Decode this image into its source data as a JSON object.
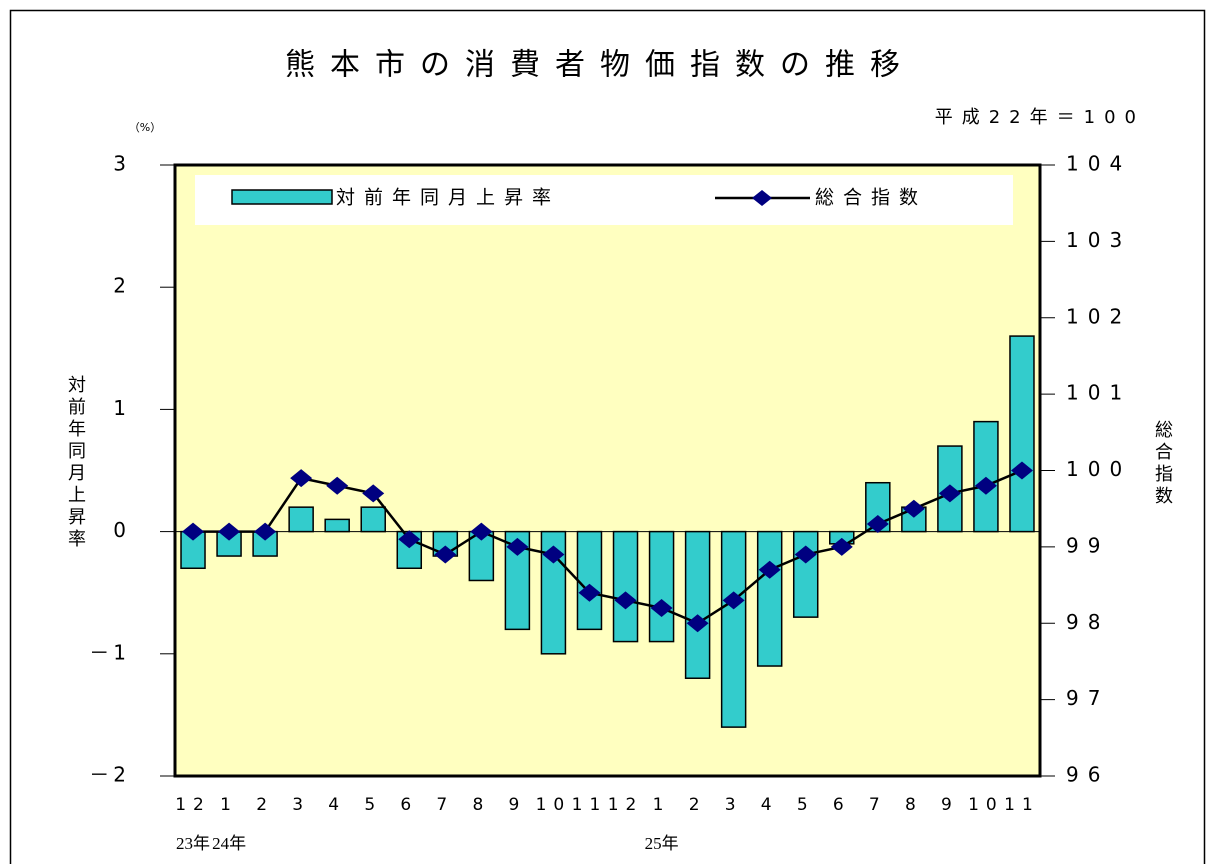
{
  "chart_data": {
    "type": "bar_line",
    "title": "熊本市の消費者物価指数の推移",
    "subtitle": "平成22年＝100",
    "y_unit": "（%）",
    "ylabel": "対前年同月上昇率",
    "y2label": "総合指数",
    "categories": [
      "12",
      "1",
      "2",
      "3",
      "4",
      "5",
      "6",
      "7",
      "8",
      "9",
      "10",
      "11",
      "12",
      "1",
      "2",
      "3",
      "4",
      "5",
      "6",
      "7",
      "8",
      "9",
      "10",
      "11"
    ],
    "category_groups": [
      "23年",
      "24年",
      null,
      null,
      null,
      null,
      null,
      null,
      null,
      null,
      null,
      null,
      null,
      "25年",
      null,
      null,
      null,
      null,
      null,
      null,
      null,
      null,
      null,
      null
    ],
    "series": [
      {
        "name": "対前年同月上昇率",
        "type": "bar",
        "color": "#33CCCC",
        "values": [
          -0.3,
          -0.2,
          -0.2,
          0.2,
          0.1,
          0.2,
          -0.3,
          -0.2,
          -0.4,
          -0.8,
          -1.0,
          -0.8,
          -0.9,
          -0.9,
          -1.2,
          -1.6,
          -1.1,
          -0.7,
          -0.1,
          0.4,
          0.2,
          0.7,
          0.9,
          1.6
        ]
      },
      {
        "name": "総合指数",
        "type": "line",
        "axis": "y2",
        "color": "#000080",
        "line_color": "#000000",
        "values": [
          99.2,
          99.2,
          99.2,
          99.9,
          99.8,
          99.7,
          99.1,
          98.9,
          99.2,
          99.0,
          98.9,
          98.4,
          98.3,
          98.2,
          98.0,
          98.3,
          98.7,
          98.9,
          99.0,
          99.3,
          99.5,
          99.7,
          99.8,
          100.0
        ]
      }
    ],
    "ylim": [
      -2,
      3
    ],
    "yticks": [
      {
        "value": -2,
        "label": "－2"
      },
      {
        "value": -1,
        "label": "－1"
      },
      0,
      1,
      2,
      3
    ],
    "y2lim": [
      96,
      104
    ],
    "y2ticks": [
      96,
      97,
      98,
      99,
      100,
      101,
      102,
      103,
      104
    ],
    "plot_color": "#FFFFC0",
    "zero_line": true
  }
}
